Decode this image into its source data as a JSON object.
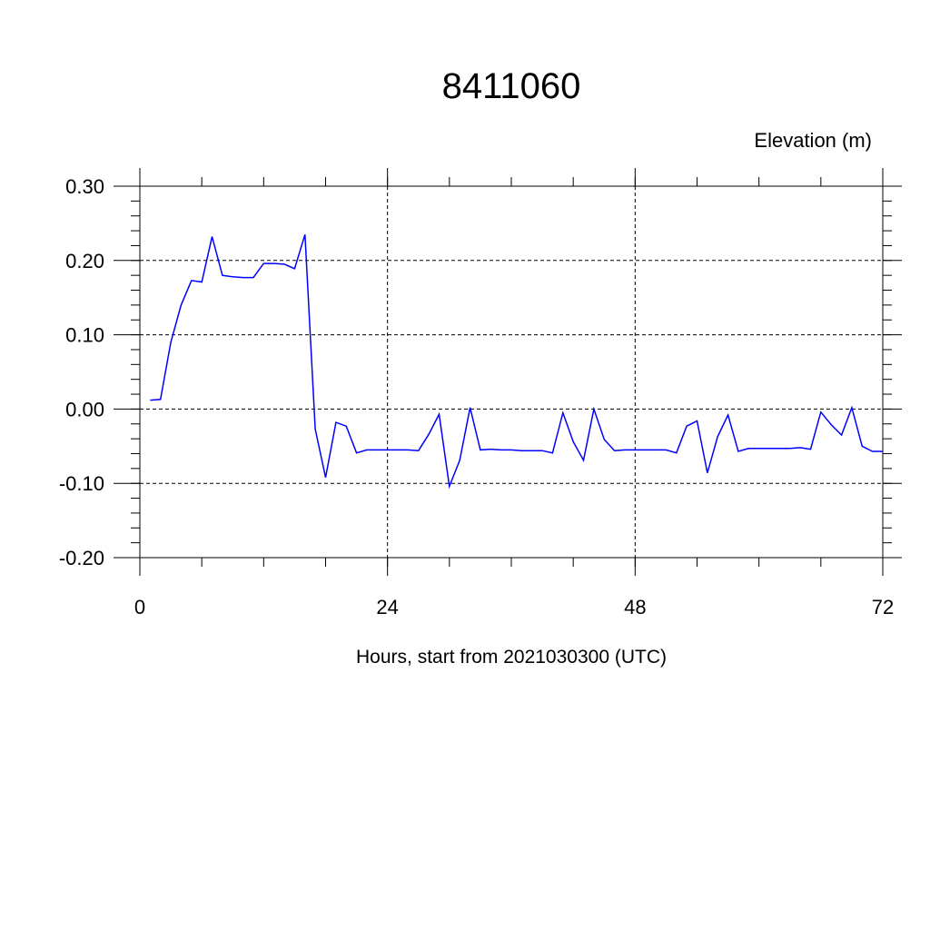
{
  "chart_data": {
    "type": "line",
    "title": "8411060",
    "ylabel": "Elevation (m)",
    "xlabel": "Hours, start from 2021030300 (UTC)",
    "xlim": [
      0,
      72
    ],
    "ylim": [
      -0.2,
      0.3
    ],
    "x_ticks": [
      0,
      24,
      48,
      72
    ],
    "x_tick_labels": [
      "0",
      "24",
      "48",
      "72"
    ],
    "y_ticks": [
      0.3,
      0.2,
      0.1,
      0.0,
      -0.1,
      -0.2
    ],
    "y_tick_labels": [
      "0.30",
      "0.20",
      "0.10",
      "0.00",
      "-0.10",
      "-0.20"
    ],
    "grid": true,
    "series": [
      {
        "color": "#0000ff",
        "x": [
          1,
          2,
          3,
          4,
          5,
          6,
          7,
          8,
          9,
          10,
          11,
          12,
          13,
          14,
          15,
          16,
          17,
          18,
          19,
          20,
          21,
          22,
          23,
          24,
          25,
          26,
          27,
          28,
          29,
          30,
          31,
          32,
          33,
          34,
          35,
          36,
          37,
          38,
          39,
          40,
          41,
          42,
          43,
          44,
          45,
          46,
          47,
          48,
          49,
          50,
          51,
          52,
          53,
          54,
          55,
          56,
          57,
          58,
          59,
          60,
          61,
          62,
          63,
          64,
          65,
          66,
          67,
          68,
          69,
          70,
          71,
          72
        ],
        "y": [
          0.012,
          0.013,
          0.09,
          0.14,
          0.173,
          0.171,
          0.232,
          0.18,
          0.178,
          0.177,
          0.177,
          0.196,
          0.196,
          0.195,
          0.189,
          0.235,
          -0.027,
          -0.092,
          -0.018,
          -0.023,
          -0.059,
          -0.055,
          -0.055,
          -0.055,
          -0.055,
          -0.055,
          -0.056,
          -0.034,
          -0.007,
          -0.104,
          -0.069,
          0.002,
          -0.055,
          -0.054,
          -0.055,
          -0.055,
          -0.056,
          -0.056,
          -0.056,
          -0.059,
          -0.005,
          -0.044,
          -0.069,
          0.0,
          -0.041,
          -0.056,
          -0.055,
          -0.055,
          -0.055,
          -0.055,
          -0.055,
          -0.059,
          -0.023,
          -0.016,
          -0.086,
          -0.037,
          -0.008,
          -0.057,
          -0.053,
          -0.053,
          -0.053,
          -0.053,
          -0.053,
          -0.052,
          -0.054,
          -0.004,
          -0.021,
          -0.035,
          0.002,
          -0.05,
          -0.057,
          -0.057
        ]
      }
    ]
  }
}
